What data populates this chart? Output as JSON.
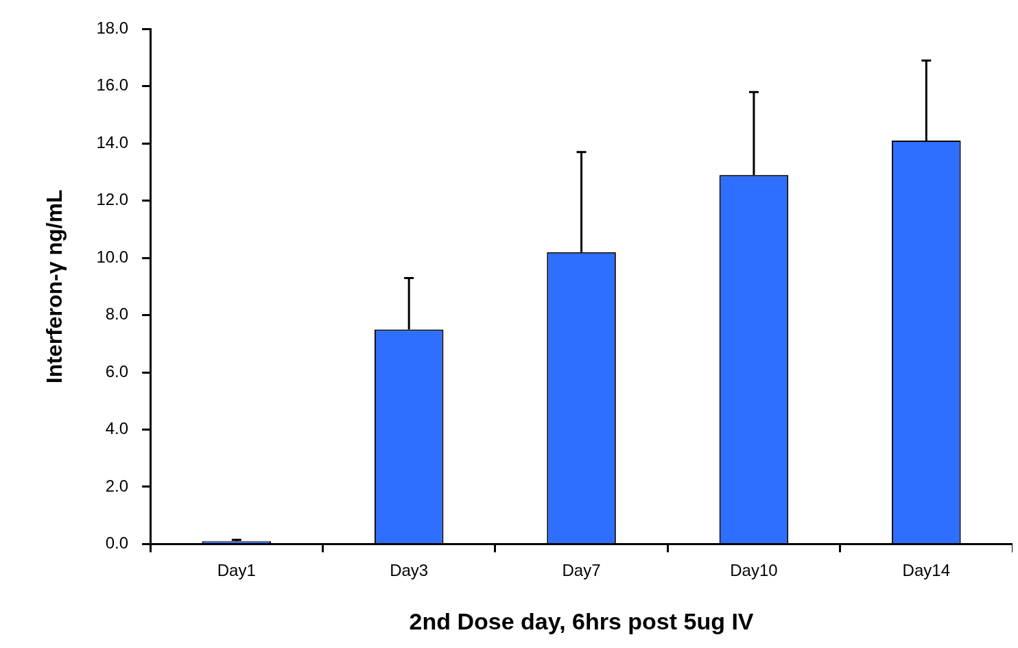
{
  "chart_data": {
    "type": "bar",
    "xlabel": "2nd Dose day, 6hrs post 5ug IV",
    "ylabel": "Interferon-γ ng/mL",
    "categories": [
      "Day1",
      "Day3",
      "Day7",
      "Day10",
      "Day14"
    ],
    "values": [
      0.1,
      7.5,
      10.2,
      12.9,
      14.1
    ],
    "errors": [
      [
        0.1,
        0.15
      ],
      [
        7.5,
        9.3
      ],
      [
        10.2,
        13.7
      ],
      [
        12.9,
        15.8
      ],
      [
        14.1,
        16.9
      ]
    ],
    "color": "#2e6fff",
    "ylim": [
      0,
      18
    ],
    "yticks": [
      {
        "value": 0,
        "label": "0.0"
      },
      {
        "value": 2,
        "label": "2.0"
      },
      {
        "value": 4,
        "label": "4.0"
      },
      {
        "value": 6,
        "label": "6.0"
      },
      {
        "value": 8,
        "label": "8.0"
      },
      {
        "value": 10,
        "label": "10.0"
      },
      {
        "value": 12,
        "label": "12.0"
      },
      {
        "value": 14,
        "label": "14.0"
      },
      {
        "value": 16,
        "label": "16.0"
      },
      {
        "value": 18,
        "label": "18.0"
      }
    ],
    "grid": false,
    "legend": false
  }
}
